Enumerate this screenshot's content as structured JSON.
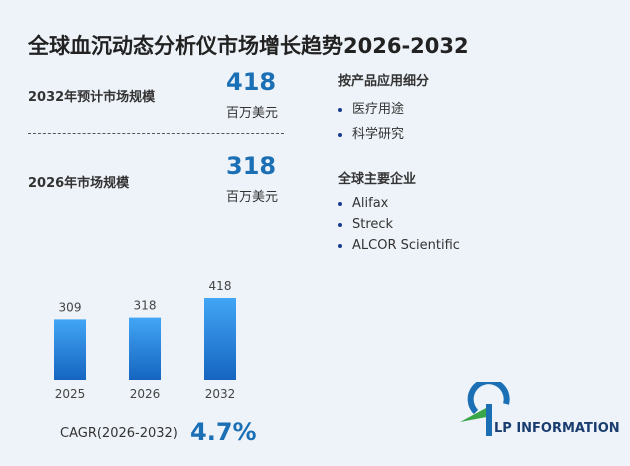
{
  "title": "全球血沉动态分析仪市场增长趋势2026-2032",
  "stats": [
    {
      "label": "2032年预计市场规模",
      "value": 418,
      "unit": "百万美元"
    },
    {
      "label": "2026年市场规模",
      "value": 318,
      "unit": "百万美元"
    }
  ],
  "segments": {
    "heading": "按产品应用细分",
    "items": [
      "医疗用途",
      "科学研究"
    ]
  },
  "companies": {
    "heading": "全球主要企业",
    "items": [
      "Alifax",
      "Streck",
      "ALCOR Scientific"
    ]
  },
  "cagr": {
    "label": "CAGR(2026-2032)",
    "value": "4.7%"
  },
  "brand": "LP INFORMATION",
  "chart_data": {
    "type": "bar",
    "categories": [
      "2025",
      "2026",
      "2032"
    ],
    "values": [
      309,
      318,
      418
    ],
    "color": "#1e88e5"
  }
}
